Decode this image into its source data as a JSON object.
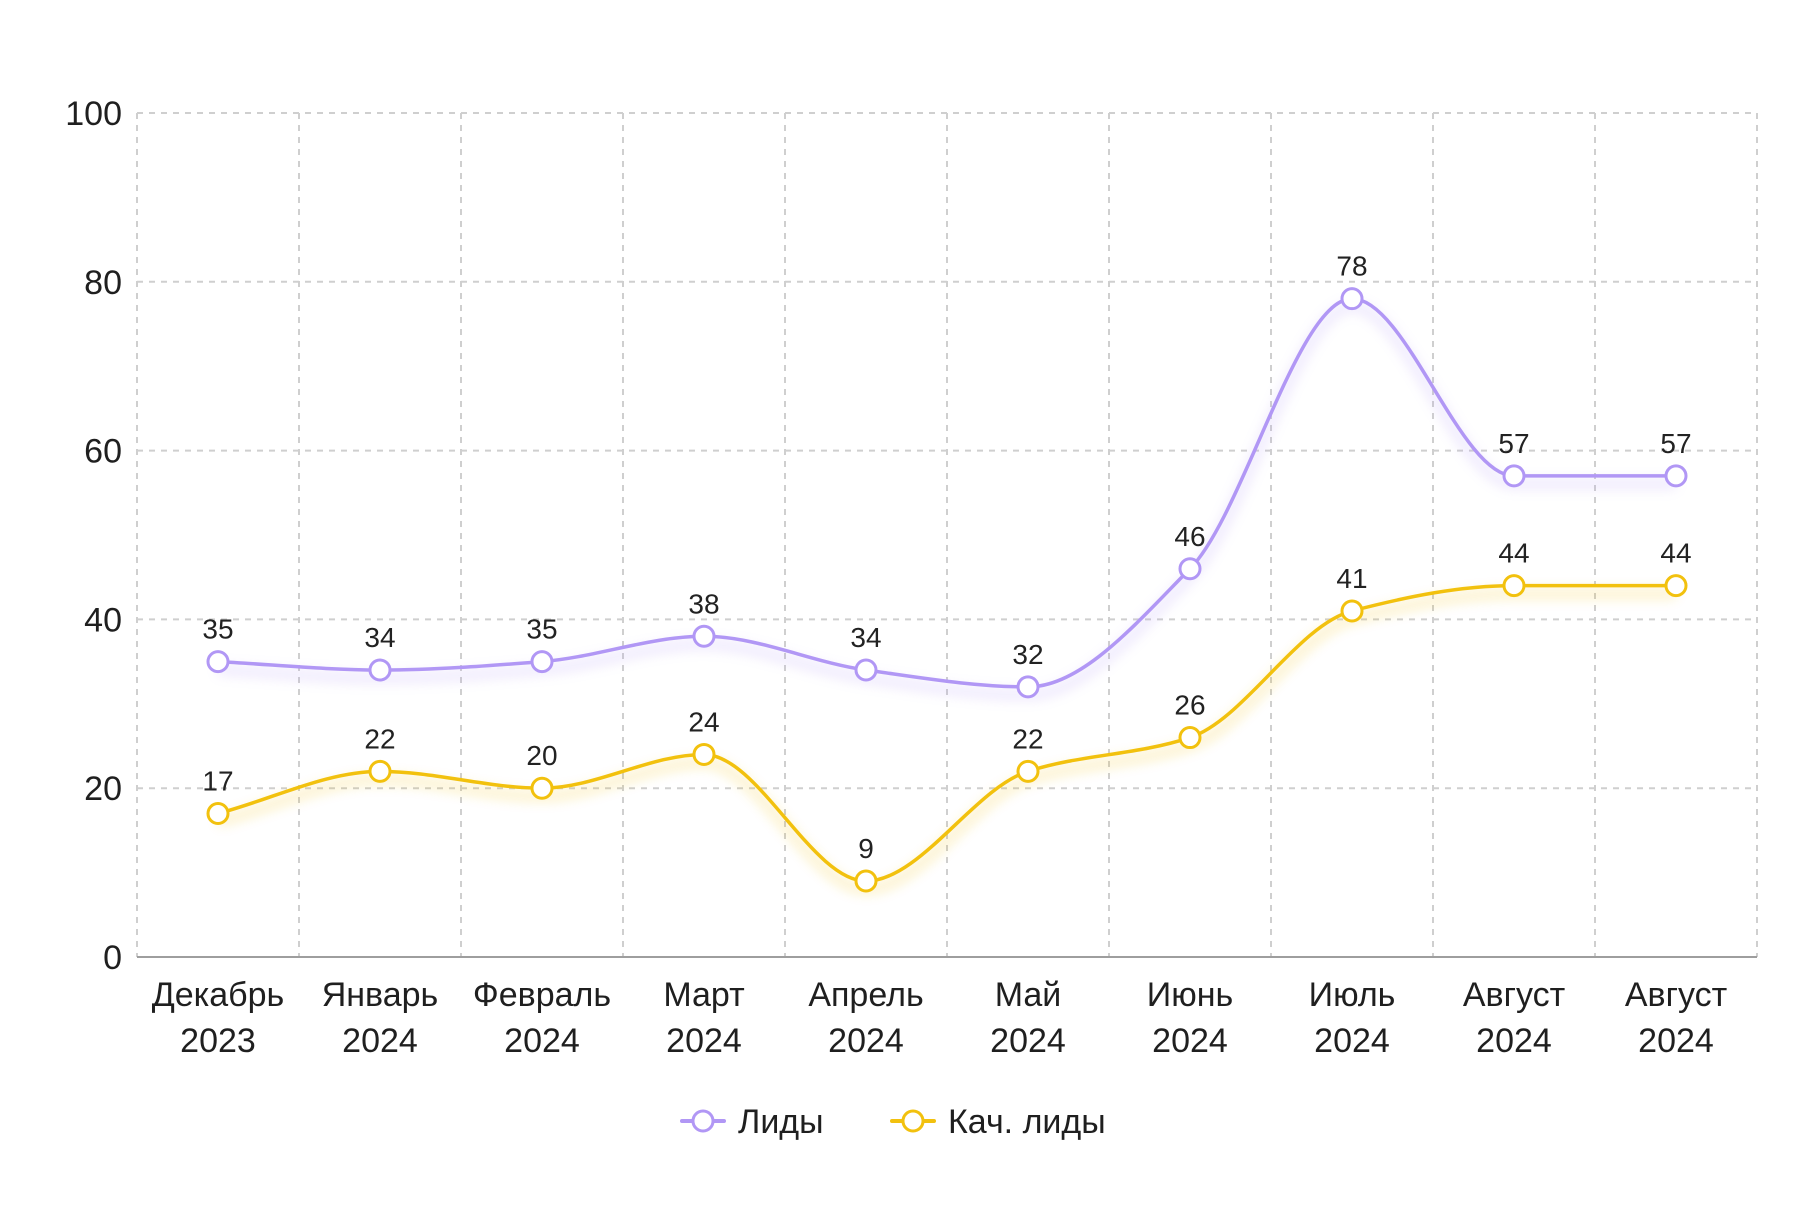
{
  "chart_data": {
    "type": "line",
    "categories": [
      [
        "Декабрь",
        "2023"
      ],
      [
        "Январь",
        "2024"
      ],
      [
        "Февраль",
        "2024"
      ],
      [
        "Март",
        "2024"
      ],
      [
        "Апрель",
        "2024"
      ],
      [
        "Май",
        "2024"
      ],
      [
        "Июнь",
        "2024"
      ],
      [
        "Июль",
        "2024"
      ],
      [
        "Август",
        "2024"
      ],
      [
        "Август",
        "2024"
      ]
    ],
    "series": [
      {
        "name": "Лиды",
        "color": "#b197f5",
        "values": [
          35,
          34,
          35,
          38,
          34,
          32,
          46,
          78,
          57,
          57
        ]
      },
      {
        "name": "Кач. лиды",
        "color": "#f2c10e",
        "values": [
          17,
          22,
          20,
          24,
          9,
          22,
          26,
          41,
          44,
          44
        ]
      }
    ],
    "ylim": [
      0,
      100
    ],
    "yticks": [
      0,
      20,
      40,
      60,
      80,
      100
    ],
    "grid": true,
    "legend_position": "bottom-center",
    "smooth": true,
    "data_labels": true
  }
}
